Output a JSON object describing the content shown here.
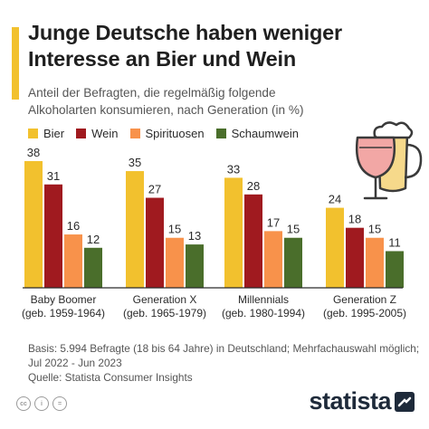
{
  "title_lines": [
    "Junge Deutsche haben weniger",
    "Interesse an Bier und Wein"
  ],
  "subtitle_lines": [
    "Anteil der Befragten, die regelmäßig folgende",
    "Alkoholarten konsumieren, nach Generation (in %)"
  ],
  "colors": {
    "accent": "#f2c12e",
    "bier": "#f2c12e",
    "wein": "#a01a1f",
    "spirituosen": "#f8924b",
    "schaumwein": "#4a6e2b"
  },
  "chart_data": {
    "type": "bar",
    "title": "Junge Deutsche haben weniger Interesse an Bier und Wein",
    "subtitle": "Anteil der Befragten, die regelmäßig folgende Alkoholarten konsumieren, nach Generation (in %)",
    "categories": [
      [
        "Baby Boomer",
        "(geb. 1959-1964)"
      ],
      [
        "Generation X",
        "(geb. 1965-1979)"
      ],
      [
        "Millennials",
        "(geb. 1980-1994)"
      ],
      [
        "Generation Z",
        "(geb. 1995-2005)"
      ]
    ],
    "series": [
      {
        "name": "Bier",
        "color": "#f2c12e",
        "values": [
          38,
          35,
          33,
          24
        ]
      },
      {
        "name": "Wein",
        "color": "#a01a1f",
        "values": [
          31,
          27,
          28,
          18
        ]
      },
      {
        "name": "Spirituosen",
        "color": "#f8924b",
        "values": [
          16,
          15,
          17,
          15
        ]
      },
      {
        "name": "Schaumwein",
        "color": "#4a6e2b",
        "values": [
          12,
          13,
          15,
          11
        ]
      }
    ],
    "ylim": [
      0,
      38
    ],
    "grid": false,
    "legend": "top-left",
    "data_labels": true
  },
  "notes": [
    "Basis: 5.994 Befragte (18 bis 64 Jahre) in Deutschland; Mehrfachauswahl möglich;",
    "Jul 2022 - Jun 2023",
    "Quelle: Statista Consumer Insights"
  ],
  "license_icons": [
    "cc-icon",
    "info-icon",
    "equals-icon"
  ],
  "brand": "statista"
}
